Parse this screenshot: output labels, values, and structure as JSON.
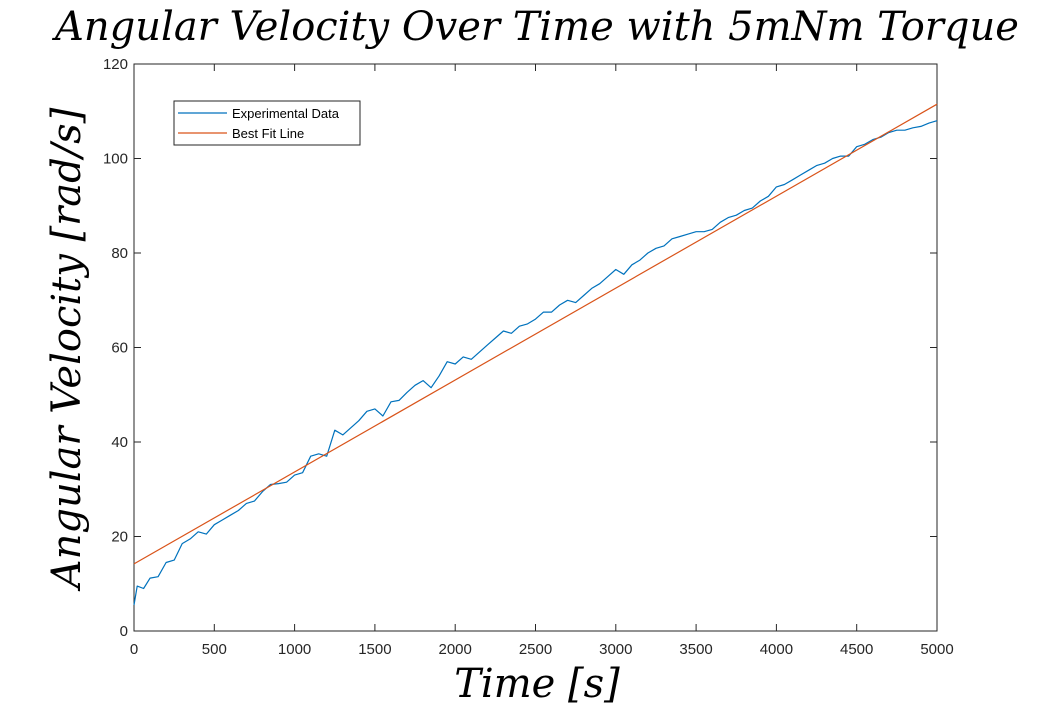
{
  "chart_data": {
    "type": "line",
    "title": "Angular Velocity Over Time with 5mNm Torque",
    "xlabel": "Time [s]",
    "ylabel": "Angular Velocity [rad/s]",
    "xlim": [
      0,
      5000
    ],
    "ylim": [
      0,
      120
    ],
    "xticks": [
      "0",
      "500",
      "1000",
      "1500",
      "2000",
      "2500",
      "3000",
      "3500",
      "4000",
      "4500",
      "5000"
    ],
    "yticks": [
      "0",
      "20",
      "40",
      "60",
      "80",
      "100",
      "120"
    ],
    "grid": false,
    "legend_position": "top-left",
    "series": [
      {
        "name": "Experimental Data",
        "color": "#0072BD",
        "x": [
          0,
          20,
          60,
          100,
          150,
          200,
          250,
          300,
          350,
          400,
          450,
          500,
          550,
          600,
          650,
          700,
          750,
          800,
          850,
          900,
          950,
          1000,
          1050,
          1100,
          1150,
          1200,
          1250,
          1300,
          1350,
          1400,
          1450,
          1500,
          1550,
          1600,
          1650,
          1700,
          1750,
          1800,
          1850,
          1900,
          1950,
          2000,
          2050,
          2100,
          2150,
          2200,
          2250,
          2300,
          2350,
          2400,
          2450,
          2500,
          2550,
          2600,
          2650,
          2700,
          2750,
          2800,
          2850,
          2900,
          2950,
          3000,
          3050,
          3100,
          3150,
          3200,
          3250,
          3300,
          3350,
          3400,
          3450,
          3500,
          3550,
          3600,
          3650,
          3700,
          3750,
          3800,
          3850,
          3900,
          3950,
          4000,
          4050,
          4100,
          4150,
          4200,
          4250,
          4300,
          4350,
          4400,
          4450,
          4500,
          4550,
          4600,
          4650,
          4700,
          4750,
          4800,
          4850,
          4900,
          4950,
          5000
        ],
        "y": [
          5.5,
          9.5,
          9.0,
          11.2,
          11.5,
          14.5,
          15.0,
          18.5,
          19.5,
          21.0,
          20.5,
          22.5,
          23.5,
          24.5,
          25.5,
          27.0,
          27.5,
          29.5,
          31.0,
          31.2,
          31.5,
          33.0,
          33.5,
          37.0,
          37.5,
          37.0,
          42.5,
          41.5,
          43.0,
          44.5,
          46.5,
          47.0,
          45.5,
          48.5,
          48.8,
          50.5,
          52.0,
          53.0,
          51.5,
          54.0,
          57.0,
          56.5,
          58.0,
          57.5,
          59.0,
          60.5,
          62.0,
          63.5,
          63.0,
          64.5,
          65.0,
          66.0,
          67.5,
          67.5,
          69.0,
          70.0,
          69.5,
          71.0,
          72.5,
          73.5,
          75.0,
          76.5,
          75.5,
          77.5,
          78.5,
          80.0,
          81.0,
          81.5,
          83.0,
          83.5,
          84.0,
          84.5,
          84.5,
          85.0,
          86.5,
          87.5,
          88.0,
          89.0,
          89.5,
          91.0,
          92.0,
          94.0,
          94.5,
          95.5,
          96.5,
          97.5,
          98.5,
          99.0,
          100.0,
          100.5,
          100.5,
          102.5,
          103.0,
          104.0,
          104.5,
          105.5,
          106.0,
          106.0,
          106.5,
          106.8,
          107.5,
          108.0
        ]
      },
      {
        "name": "Best Fit Line",
        "color": "#D95319",
        "x": [
          0,
          5000
        ],
        "y": [
          14.2,
          111.5
        ]
      }
    ]
  }
}
